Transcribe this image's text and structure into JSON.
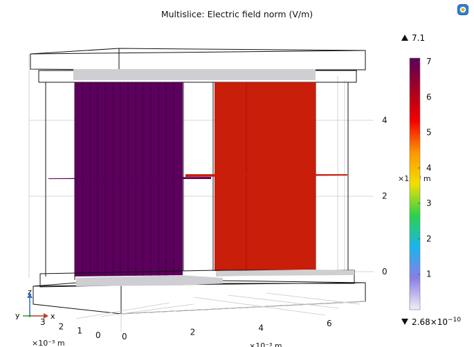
{
  "title": "Multislice: Electric field norm (V/m)",
  "icons": {
    "toolbar": "comsol-icon"
  },
  "chart_data": {
    "type": "heatmap",
    "title": "Multislice: Electric field norm (V/m)",
    "colorbar": {
      "max_label": "7.1",
      "min_label": "2.68×10",
      "min_exponent": "−10",
      "max": 7.1,
      "min": 2.68e-10,
      "ticks": [
        1,
        2,
        3,
        4,
        5,
        6,
        7
      ],
      "colormap": "rainbow",
      "colors": [
        "#f2eef6",
        "#8a7ee6",
        "#18b5ec",
        "#2bd24a",
        "#f2e000",
        "#ff9500",
        "#f40000",
        "#a70020",
        "#5b005f"
      ]
    },
    "slices": [
      {
        "name": "left slice",
        "value": 7.1,
        "color": "#5b005c"
      },
      {
        "name": "right slice",
        "value": 5.7,
        "color": "#c81e0a"
      }
    ],
    "z_axis": {
      "ticks": [
        "0",
        "2",
        "4"
      ],
      "unit_label": "×10⁻³ m"
    },
    "x_axis": {
      "ticks": [
        "0",
        "2",
        "4",
        "6"
      ],
      "unit_label": "×10⁻³ m"
    },
    "y_axis": {
      "ticks": [
        "3",
        "2",
        "1",
        "0"
      ],
      "unit_label": "×10⁻³ m"
    },
    "triad": {
      "z": "z",
      "y": "y",
      "x": "x"
    }
  }
}
